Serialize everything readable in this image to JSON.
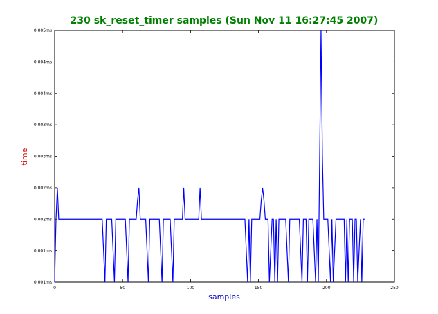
{
  "chart_data": {
    "type": "line",
    "title": "230 sk_reset_timer samples (Sun Nov 11 16:27:45 2007)",
    "xlabel": "samples",
    "ylabel": "time",
    "xlim": [
      0,
      250
    ],
    "ylim": [
      0.001,
      0.005
    ],
    "grid": false,
    "legend": "none",
    "colors": {
      "title": "#008000",
      "xlabel": "#0000cc",
      "ylabel": "#cc0000",
      "line": "#0000ff"
    },
    "x_ticks": [
      {
        "value": 0,
        "label": "0"
      },
      {
        "value": 50,
        "label": "50"
      },
      {
        "value": 100,
        "label": "100"
      },
      {
        "value": 150,
        "label": "150"
      },
      {
        "value": 200,
        "label": "200"
      },
      {
        "value": 250,
        "label": "250"
      }
    ],
    "y_ticks": [
      {
        "value": 0.001,
        "label": "0.001ms"
      },
      {
        "value": 0.0015,
        "label": "0.001ms"
      },
      {
        "value": 0.002,
        "label": "0.002ms"
      },
      {
        "value": 0.0025,
        "label": "0.002ms"
      },
      {
        "value": 0.003,
        "label": "0.003ms"
      },
      {
        "value": 0.0035,
        "label": "0.003ms"
      },
      {
        "value": 0.004,
        "label": "0.004ms"
      },
      {
        "value": 0.0045,
        "label": "0.004ms"
      },
      {
        "value": 0.005,
        "label": "0.005ms"
      }
    ],
    "series": [
      {
        "x": [
          0,
          1,
          2,
          3,
          4,
          35,
          36,
          37,
          38,
          42,
          43,
          44,
          45,
          52,
          53,
          54,
          55,
          60,
          61,
          62,
          63,
          64,
          67,
          68,
          69,
          70,
          77,
          78,
          79,
          80,
          85,
          86,
          87,
          88,
          94,
          95,
          96,
          97,
          106,
          107,
          108,
          109,
          140,
          141,
          142,
          143,
          144,
          145,
          146,
          151,
          152,
          153,
          154,
          155,
          156,
          157,
          158,
          160,
          161,
          162,
          163,
          164,
          165,
          166,
          170,
          171,
          172,
          173,
          180,
          181,
          182,
          183,
          185,
          186,
          187,
          188,
          190,
          191,
          192,
          193,
          194,
          195,
          196,
          197,
          198,
          201,
          202,
          203,
          204,
          205,
          206,
          207,
          213,
          214,
          215,
          216,
          217,
          219,
          220,
          221,
          222,
          223,
          225,
          226,
          227,
          228
        ],
        "y": [
          0.001,
          0.002,
          0.0025,
          0.002,
          0.002,
          0.002,
          0.0015,
          0.001,
          0.002,
          0.002,
          0.0015,
          0.001,
          0.002,
          0.002,
          0.0015,
          0.001,
          0.002,
          0.002,
          0.0023,
          0.0025,
          0.002,
          0.002,
          0.002,
          0.0015,
          0.001,
          0.002,
          0.002,
          0.0015,
          0.001,
          0.002,
          0.002,
          0.0015,
          0.001,
          0.002,
          0.002,
          0.0025,
          0.002,
          0.002,
          0.002,
          0.0025,
          0.002,
          0.002,
          0.002,
          0.0015,
          0.001,
          0.002,
          0.001,
          0.002,
          0.002,
          0.002,
          0.0023,
          0.0025,
          0.0023,
          0.002,
          0.002,
          0.002,
          0.001,
          0.002,
          0.002,
          0.001,
          0.002,
          0.001,
          0.002,
          0.002,
          0.002,
          0.0015,
          0.001,
          0.002,
          0.002,
          0.0015,
          0.001,
          0.002,
          0.002,
          0.001,
          0.002,
          0.002,
          0.002,
          0.0015,
          0.001,
          0.002,
          0.001,
          0.003,
          0.005,
          0.003,
          0.002,
          0.002,
          0.0015,
          0.001,
          0.002,
          0.001,
          0.0015,
          0.002,
          0.002,
          0.001,
          0.002,
          0.001,
          0.002,
          0.002,
          0.001,
          0.002,
          0.002,
          0.001,
          0.002,
          0.001,
          0.002,
          0.002
        ]
      }
    ]
  }
}
